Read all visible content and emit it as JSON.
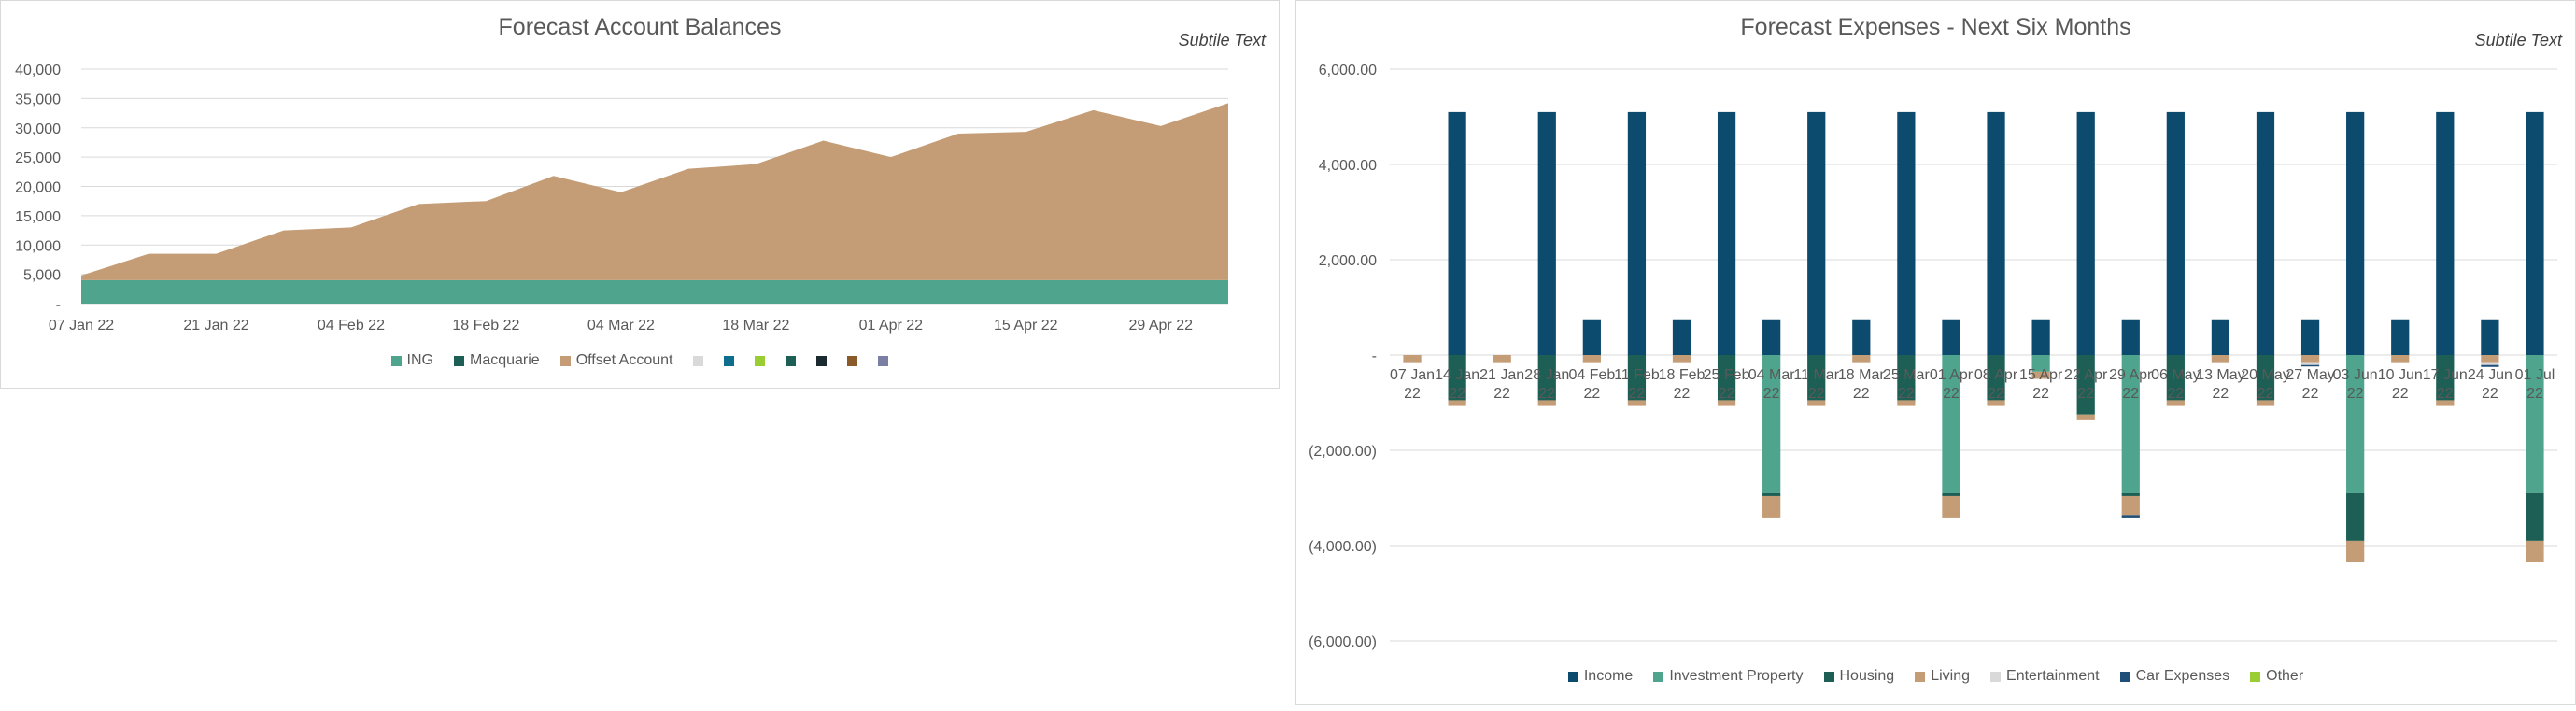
{
  "chart_data": [
    {
      "type": "area",
      "title": "Forecast Account Balances",
      "subtitle": "Subtile Text",
      "x": [
        "07 Jan 22",
        "14 Jan 22",
        "21 Jan 22",
        "28 Jan 22",
        "04 Feb 22",
        "11 Feb 22",
        "18 Feb 22",
        "25 Feb 22",
        "04 Mar 22",
        "11 Mar 22",
        "18 Mar 22",
        "25 Mar 22",
        "01 Apr 22",
        "08 Apr 22",
        "15 Apr 22",
        "22 Apr 22",
        "29 Apr 22",
        "06 May 22"
      ],
      "tick_labels": [
        "07 Jan 22",
        "21 Jan 22",
        "04 Feb 22",
        "18 Feb 22",
        "04 Mar 22",
        "18 Mar 22",
        "01 Apr 22",
        "15 Apr 22",
        "29 Apr 22"
      ],
      "y_ticks": [
        "40,000",
        "35,000",
        "30,000",
        "25,000",
        "20,000",
        "15,000",
        "10,000",
        "5,000",
        "-"
      ],
      "ylim": [
        0,
        40000
      ],
      "stacked": true,
      "series": [
        {
          "name": "ING",
          "color": "#4ea48c",
          "values": [
            4000,
            4000,
            4000,
            4000,
            4000,
            4000,
            4000,
            4000,
            4000,
            4000,
            4000,
            4000,
            4000,
            4000,
            4000,
            4000,
            4000,
            4000
          ]
        },
        {
          "name": "Macquarie",
          "color": "#1d5f55",
          "values": [
            0,
            0,
            0,
            0,
            0,
            0,
            0,
            0,
            0,
            0,
            0,
            0,
            0,
            0,
            0,
            0,
            0,
            0
          ]
        },
        {
          "name": "Offset Account",
          "color": "#c49c76",
          "values": [
            800,
            4500,
            4500,
            8500,
            9000,
            13000,
            13500,
            17800,
            15000,
            19000,
            19800,
            23800,
            21000,
            25000,
            25300,
            29000,
            26300,
            30200
          ]
        }
      ],
      "extra_legend": [
        {
          "name": "",
          "color": "#d9d9d9"
        },
        {
          "name": "",
          "color": "#0e6e8e"
        },
        {
          "name": "",
          "color": "#9acd32"
        },
        {
          "name": "",
          "color": "#1d5f55"
        },
        {
          "name": "",
          "color": "#1b2a2e"
        },
        {
          "name": "",
          "color": "#8b5a2b"
        },
        {
          "name": "",
          "color": "#7a7fa3"
        }
      ],
      "grid": true,
      "legend_position": "bottom"
    },
    {
      "type": "bar",
      "stacked": true,
      "title": "Forecast Expenses - Next Six Months",
      "subtitle": "Subtile Text",
      "categories": [
        "07 Jan 22",
        "14 Jan 22",
        "21 Jan 22",
        "28 Jan 22",
        "04 Feb 22",
        "11 Feb 22",
        "18 Feb 22",
        "25 Feb 22",
        "04 Mar 22",
        "11 Mar 22",
        "18 Mar 22",
        "25 Mar 22",
        "01 Apr 22",
        "08 Apr 22",
        "15 Apr 22",
        "22 Apr 22",
        "29 Apr 22",
        "06 May 22",
        "13 May 22",
        "20 May 22",
        "27 May 22",
        "03 Jun 22",
        "10 Jun 22",
        "17 Jun 22",
        "24 Jun 22",
        "01 Jul 22"
      ],
      "y_ticks": [
        "6,000.00",
        "4,000.00",
        "2,000.00",
        "-",
        "(2,000.00)",
        "(4,000.00)",
        "(6,000.00)"
      ],
      "ylim": [
        -6000,
        6000
      ],
      "series": [
        {
          "name": "Income",
          "color": "#0c4a6e",
          "values": [
            0,
            5100,
            0,
            5100,
            750,
            5100,
            750,
            5100,
            750,
            5100,
            750,
            5100,
            750,
            5100,
            750,
            5100,
            750,
            5100,
            750,
            5100,
            750,
            5100,
            750,
            5100,
            750,
            5100
          ]
        },
        {
          "name": "Investment Property",
          "color": "#4ea48c",
          "values": [
            0,
            0,
            0,
            0,
            0,
            0,
            0,
            0,
            -2900,
            0,
            0,
            0,
            -2900,
            0,
            -350,
            0,
            -2900,
            0,
            0,
            0,
            0,
            -2900,
            0,
            0,
            0,
            -2900
          ]
        },
        {
          "name": "Housing",
          "color": "#1d5f55",
          "values": [
            0,
            -950,
            0,
            -950,
            0,
            -950,
            0,
            -950,
            -60,
            -950,
            0,
            -950,
            -60,
            -950,
            0,
            -1250,
            -60,
            -950,
            0,
            -950,
            0,
            -1000,
            0,
            -950,
            0,
            -1000
          ]
        },
        {
          "name": "Living",
          "color": "#c49c76",
          "values": [
            -150,
            -120,
            -150,
            -120,
            -150,
            -120,
            -150,
            -120,
            -450,
            -120,
            -150,
            -120,
            -450,
            -120,
            -150,
            -120,
            -400,
            -120,
            -150,
            -120,
            -150,
            -450,
            -150,
            -120,
            -150,
            -450
          ]
        },
        {
          "name": "Entertainment",
          "color": "#d9d9d9",
          "values": [
            0,
            0,
            0,
            0,
            0,
            0,
            0,
            0,
            0,
            0,
            0,
            0,
            0,
            0,
            0,
            0,
            0,
            0,
            0,
            0,
            -60,
            0,
            0,
            0,
            -60,
            0
          ]
        },
        {
          "name": "Car Expenses",
          "color": "#1f4e79",
          "values": [
            0,
            0,
            0,
            0,
            0,
            0,
            0,
            0,
            0,
            0,
            0,
            0,
            0,
            0,
            0,
            0,
            -50,
            0,
            0,
            0,
            -30,
            0,
            0,
            0,
            -40,
            0
          ]
        },
        {
          "name": "Other",
          "color": "#9acd32",
          "values": [
            0,
            0,
            0,
            0,
            0,
            0,
            0,
            0,
            0,
            0,
            0,
            0,
            0,
            0,
            0,
            0,
            0,
            0,
            0,
            0,
            0,
            0,
            0,
            0,
            0,
            0
          ]
        }
      ],
      "grid": true,
      "legend_position": "bottom"
    }
  ]
}
